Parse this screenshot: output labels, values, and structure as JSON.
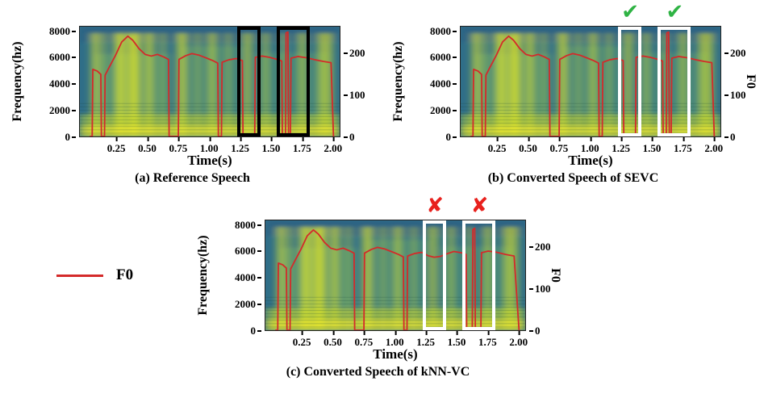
{
  "legend": {
    "label": "F0",
    "line_color": "#d42a2a"
  },
  "chart_data": [
    {
      "type": "heatmap",
      "title": "(a) Reference Speech",
      "xlabel": "Time(s)",
      "ylabel": "Frequency(hz)",
      "y2label": "",
      "colormap": "viridis",
      "xlim": [
        -0.05,
        2.06
      ],
      "ylim": [
        0,
        8400
      ],
      "y2lim": [
        0,
        265
      ],
      "x_ticks": [
        "0.25",
        "0.50",
        "0.75",
        "1.00",
        "1.25",
        "1.50",
        "1.75",
        "2.00"
      ],
      "y_ticks": [
        "0",
        "2000",
        "4000",
        "6000",
        "8000"
      ],
      "y2_ticks": [
        "0",
        "100",
        "200"
      ],
      "f0_series": {
        "name": "F0",
        "color": "#d42a2a",
        "points": [
          [
            0.03,
            0
          ],
          [
            0.05,
            0
          ],
          [
            0.055,
            162
          ],
          [
            0.09,
            158
          ],
          [
            0.12,
            150
          ],
          [
            0.125,
            0
          ],
          [
            0.15,
            0
          ],
          [
            0.155,
            148
          ],
          [
            0.19,
            168
          ],
          [
            0.24,
            196
          ],
          [
            0.29,
            228
          ],
          [
            0.34,
            242
          ],
          [
            0.38,
            232
          ],
          [
            0.43,
            212
          ],
          [
            0.48,
            198
          ],
          [
            0.53,
            194
          ],
          [
            0.58,
            198
          ],
          [
            0.63,
            192
          ],
          [
            0.67,
            186
          ],
          [
            0.675,
            0
          ],
          [
            0.75,
            0
          ],
          [
            0.755,
            186
          ],
          [
            0.81,
            195
          ],
          [
            0.86,
            200
          ],
          [
            0.92,
            196
          ],
          [
            0.98,
            189
          ],
          [
            1.03,
            183
          ],
          [
            1.07,
            177
          ],
          [
            1.075,
            0
          ],
          [
            1.1,
            0
          ],
          [
            1.105,
            179
          ],
          [
            1.16,
            185
          ],
          [
            1.22,
            188
          ],
          [
            1.27,
            183
          ],
          [
            1.275,
            0
          ],
          [
            1.37,
            0
          ],
          [
            1.375,
            191
          ],
          [
            1.43,
            194
          ],
          [
            1.49,
            191
          ],
          [
            1.54,
            187
          ],
          [
            1.59,
            182
          ],
          [
            1.595,
            0
          ],
          [
            1.62,
            0
          ],
          [
            1.625,
            250
          ],
          [
            1.64,
            252
          ],
          [
            1.645,
            0
          ],
          [
            1.66,
            0
          ],
          [
            1.665,
            189
          ],
          [
            1.72,
            193
          ],
          [
            1.79,
            190
          ],
          [
            1.86,
            185
          ],
          [
            1.93,
            181
          ],
          [
            1.99,
            178
          ],
          [
            2.01,
            0
          ]
        ]
      },
      "highlights": [
        {
          "x0": 1.23,
          "x1": 1.42,
          "color": "#000000",
          "mark": null
        },
        {
          "x0": 1.55,
          "x1": 1.82,
          "color": "#000000",
          "mark": null
        }
      ]
    },
    {
      "type": "heatmap",
      "title": "(b) Converted Speech of SEVC",
      "xlabel": "Time(s)",
      "ylabel": "Frequency(hz)",
      "y2label": "F0",
      "colormap": "viridis",
      "xlim": [
        -0.05,
        2.06
      ],
      "ylim": [
        0,
        8400
      ],
      "y2lim": [
        0,
        265
      ],
      "x_ticks": [
        "0.25",
        "0.50",
        "0.75",
        "1.00",
        "1.25",
        "1.50",
        "1.75",
        "2.00"
      ],
      "y_ticks": [
        "0",
        "2000",
        "4000",
        "6000",
        "8000"
      ],
      "y2_ticks": [
        "0",
        "100",
        "200"
      ],
      "f0_series": {
        "name": "F0",
        "color": "#d42a2a",
        "points": [
          [
            0.03,
            0
          ],
          [
            0.05,
            0
          ],
          [
            0.055,
            162
          ],
          [
            0.09,
            158
          ],
          [
            0.12,
            150
          ],
          [
            0.125,
            0
          ],
          [
            0.15,
            0
          ],
          [
            0.155,
            148
          ],
          [
            0.19,
            168
          ],
          [
            0.24,
            196
          ],
          [
            0.29,
            228
          ],
          [
            0.34,
            242
          ],
          [
            0.38,
            232
          ],
          [
            0.43,
            212
          ],
          [
            0.48,
            198
          ],
          [
            0.53,
            194
          ],
          [
            0.58,
            198
          ],
          [
            0.63,
            192
          ],
          [
            0.67,
            186
          ],
          [
            0.675,
            0
          ],
          [
            0.75,
            0
          ],
          [
            0.755,
            186
          ],
          [
            0.81,
            195
          ],
          [
            0.86,
            200
          ],
          [
            0.92,
            196
          ],
          [
            0.98,
            189
          ],
          [
            1.03,
            183
          ],
          [
            1.07,
            177
          ],
          [
            1.075,
            0
          ],
          [
            1.1,
            0
          ],
          [
            1.105,
            179
          ],
          [
            1.16,
            185
          ],
          [
            1.22,
            188
          ],
          [
            1.27,
            183
          ],
          [
            1.275,
            0
          ],
          [
            1.37,
            0
          ],
          [
            1.375,
            191
          ],
          [
            1.43,
            194
          ],
          [
            1.49,
            191
          ],
          [
            1.54,
            187
          ],
          [
            1.59,
            182
          ],
          [
            1.595,
            0
          ],
          [
            1.62,
            0
          ],
          [
            1.625,
            250
          ],
          [
            1.64,
            252
          ],
          [
            1.645,
            0
          ],
          [
            1.66,
            0
          ],
          [
            1.665,
            189
          ],
          [
            1.72,
            193
          ],
          [
            1.79,
            190
          ],
          [
            1.86,
            185
          ],
          [
            1.93,
            181
          ],
          [
            1.99,
            178
          ],
          [
            2.01,
            0
          ]
        ]
      },
      "highlights": [
        {
          "x0": 1.23,
          "x1": 1.42,
          "color": "#ffffff",
          "mark": {
            "name": "check-mark",
            "symbol": "✔",
            "color": "#2fb344"
          }
        },
        {
          "x0": 1.55,
          "x1": 1.82,
          "color": "#ffffff",
          "mark": {
            "name": "check-mark",
            "symbol": "✔",
            "color": "#2fb344"
          }
        }
      ]
    },
    {
      "type": "heatmap",
      "title": "(c) Converted Speech of kNN-VC",
      "xlabel": "Time(s)",
      "ylabel": "Frequency(hz)",
      "y2label": "F0",
      "colormap": "viridis",
      "xlim": [
        -0.05,
        2.06
      ],
      "ylim": [
        0,
        8400
      ],
      "y2lim": [
        0,
        265
      ],
      "x_ticks": [
        "0.25",
        "0.50",
        "0.75",
        "1.00",
        "1.25",
        "1.50",
        "1.75",
        "2.00"
      ],
      "y_ticks": [
        "0",
        "2000",
        "4000",
        "6000",
        "8000"
      ],
      "y2_ticks": [
        "0",
        "100",
        "200"
      ],
      "f0_series": {
        "name": "F0",
        "color": "#d42a2a",
        "points": [
          [
            0.03,
            0
          ],
          [
            0.05,
            0
          ],
          [
            0.055,
            162
          ],
          [
            0.09,
            158
          ],
          [
            0.12,
            150
          ],
          [
            0.125,
            0
          ],
          [
            0.15,
            0
          ],
          [
            0.155,
            148
          ],
          [
            0.19,
            168
          ],
          [
            0.24,
            196
          ],
          [
            0.29,
            228
          ],
          [
            0.34,
            242
          ],
          [
            0.38,
            232
          ],
          [
            0.43,
            212
          ],
          [
            0.48,
            198
          ],
          [
            0.53,
            194
          ],
          [
            0.58,
            198
          ],
          [
            0.63,
            192
          ],
          [
            0.67,
            186
          ],
          [
            0.675,
            0
          ],
          [
            0.75,
            0
          ],
          [
            0.755,
            186
          ],
          [
            0.81,
            195
          ],
          [
            0.86,
            200
          ],
          [
            0.92,
            196
          ],
          [
            0.98,
            189
          ],
          [
            1.03,
            183
          ],
          [
            1.07,
            177
          ],
          [
            1.075,
            0
          ],
          [
            1.1,
            0
          ],
          [
            1.105,
            179
          ],
          [
            1.16,
            185
          ],
          [
            1.22,
            188
          ],
          [
            1.27,
            180
          ],
          [
            1.32,
            176
          ],
          [
            1.37,
            178
          ],
          [
            1.42,
            184
          ],
          [
            1.48,
            190
          ],
          [
            1.54,
            187
          ],
          [
            1.58,
            183
          ],
          [
            1.585,
            0
          ],
          [
            1.63,
            0
          ],
          [
            1.635,
            243
          ],
          [
            1.65,
            246
          ],
          [
            1.655,
            0
          ],
          [
            1.7,
            0
          ],
          [
            1.705,
            187
          ],
          [
            1.76,
            191
          ],
          [
            1.83,
            188
          ],
          [
            1.9,
            183
          ],
          [
            1.97,
            179
          ],
          [
            2.01,
            0
          ]
        ]
      },
      "highlights": [
        {
          "x0": 1.23,
          "x1": 1.42,
          "color": "#ffffff",
          "mark": {
            "name": "cross-mark",
            "symbol": "✘",
            "color": "#e8211d"
          }
        },
        {
          "x0": 1.55,
          "x1": 1.82,
          "color": "#ffffff",
          "mark": {
            "name": "cross-mark",
            "symbol": "✘",
            "color": "#e8211d"
          }
        }
      ]
    }
  ]
}
